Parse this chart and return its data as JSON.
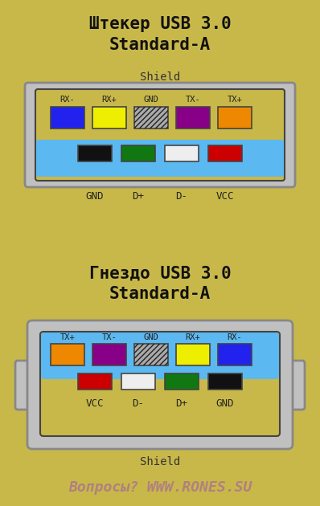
{
  "bg_color": "#c8b84a",
  "title1_line1": "Штекер USB 3.0",
  "title1_line2": "Standard-A",
  "title2_line1": "Гнездо USB 3.0",
  "title2_line2": "Standard-A",
  "footer": "Вопросы? WWW.RONES.SU",
  "shell_gray": "#c0c0c0",
  "shell_border": "#888888",
  "inner_border": "#444444",
  "plug_bg": "#c8b84a",
  "blue_bar": "#5bb8f0",
  "gnd_bg": "#aaaaaa",
  "gnd_stripe": "#222222",
  "top_row_colors": [
    "#2222ee",
    "#eeee00",
    "gnd",
    "#880088",
    "#ee8800"
  ],
  "top_row_labels": [
    "RX-",
    "RX+",
    "GND",
    "TX-",
    "TX+"
  ],
  "bottom_row_colors": [
    "#111111",
    "#117711",
    "#eeeeee",
    "#cc0000"
  ],
  "bottom_row_labels": [
    "GND",
    "D+",
    "D-",
    "VCC"
  ],
  "socket_top_colors": [
    "#ee8800",
    "#880088",
    "gnd",
    "#eeee00",
    "#2222ee"
  ],
  "socket_top_labels": [
    "TX+",
    "TX-",
    "GND",
    "RX+",
    "RX-"
  ],
  "socket_bottom_colors": [
    "#cc0000",
    "#eeeeee",
    "#117711",
    "#111111"
  ],
  "socket_bottom_labels": [
    "VCC",
    "D-",
    "D+",
    "GND"
  ],
  "label_color": "#222222",
  "footer_color": "#b08080"
}
